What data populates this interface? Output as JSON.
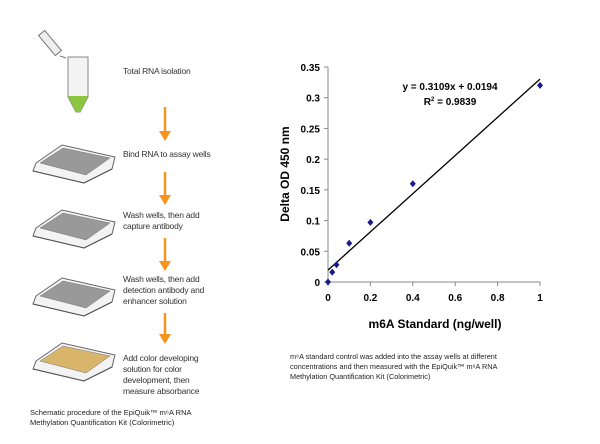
{
  "procedure": {
    "steps": [
      {
        "line1": "Total RNA isolation",
        "icon": "tube"
      },
      {
        "line1": "Bind RNA to assay wells",
        "icon": "plate"
      },
      {
        "line1": "Wash wells, then add",
        "line2": "capture antibody",
        "icon": "plate"
      },
      {
        "line1": "Wash wells, then add",
        "line2": "detection antibody and",
        "line3": "enhancer solution",
        "icon": "plate"
      },
      {
        "line1": "Add color developing",
        "line2": "solution for color",
        "line3": "development, then",
        "line4": "measure absorbance",
        "icon": "plate-colored"
      }
    ],
    "caption_line1": "Schematic procedure of the EpiQuik™ m⁶A RNA",
    "caption_line2": "Methylation Quantification Kit (Colorimetric)",
    "colors": {
      "arrow": "#f7941d",
      "tube_liquid": "#8dc63f",
      "color_solution": "#d8b56a"
    }
  },
  "chart_data": {
    "type": "scatter",
    "xlabel": "m6A Standard (ng/well)",
    "ylabel": "Delta OD 450 nm",
    "xlim": [
      0,
      1
    ],
    "ylim": [
      0,
      0.35
    ],
    "xticks": [
      "0",
      "0.2",
      "0.4",
      "0.6",
      "0.8",
      "1"
    ],
    "yticks": [
      "0",
      "0.05",
      "0.1",
      "0.15",
      "0.2",
      "0.25",
      "0.3",
      "0.35"
    ],
    "points": [
      {
        "x": 0,
        "y": 0
      },
      {
        "x": 0.02,
        "y": 0.016
      },
      {
        "x": 0.04,
        "y": 0.028
      },
      {
        "x": 0.1,
        "y": 0.063
      },
      {
        "x": 0.2,
        "y": 0.097
      },
      {
        "x": 0.4,
        "y": 0.16
      },
      {
        "x": 1,
        "y": 0.32
      }
    ],
    "trendline": {
      "slope": 0.3109,
      "intercept": 0.0194,
      "equation": "y = 0.3109x + 0.0194",
      "r2_label": "R",
      "r2_value": " = 0.9839"
    },
    "grid": false,
    "marker_color": "#1a1a8c"
  },
  "chart_caption": {
    "line1": "m⁶A standard control was added into the assay wells at different",
    "line2": "concentrations and then measured with the EpiQuik™ m⁶A RNA",
    "line3": "Methylation Quantification  Kit (Colorimetric)"
  }
}
